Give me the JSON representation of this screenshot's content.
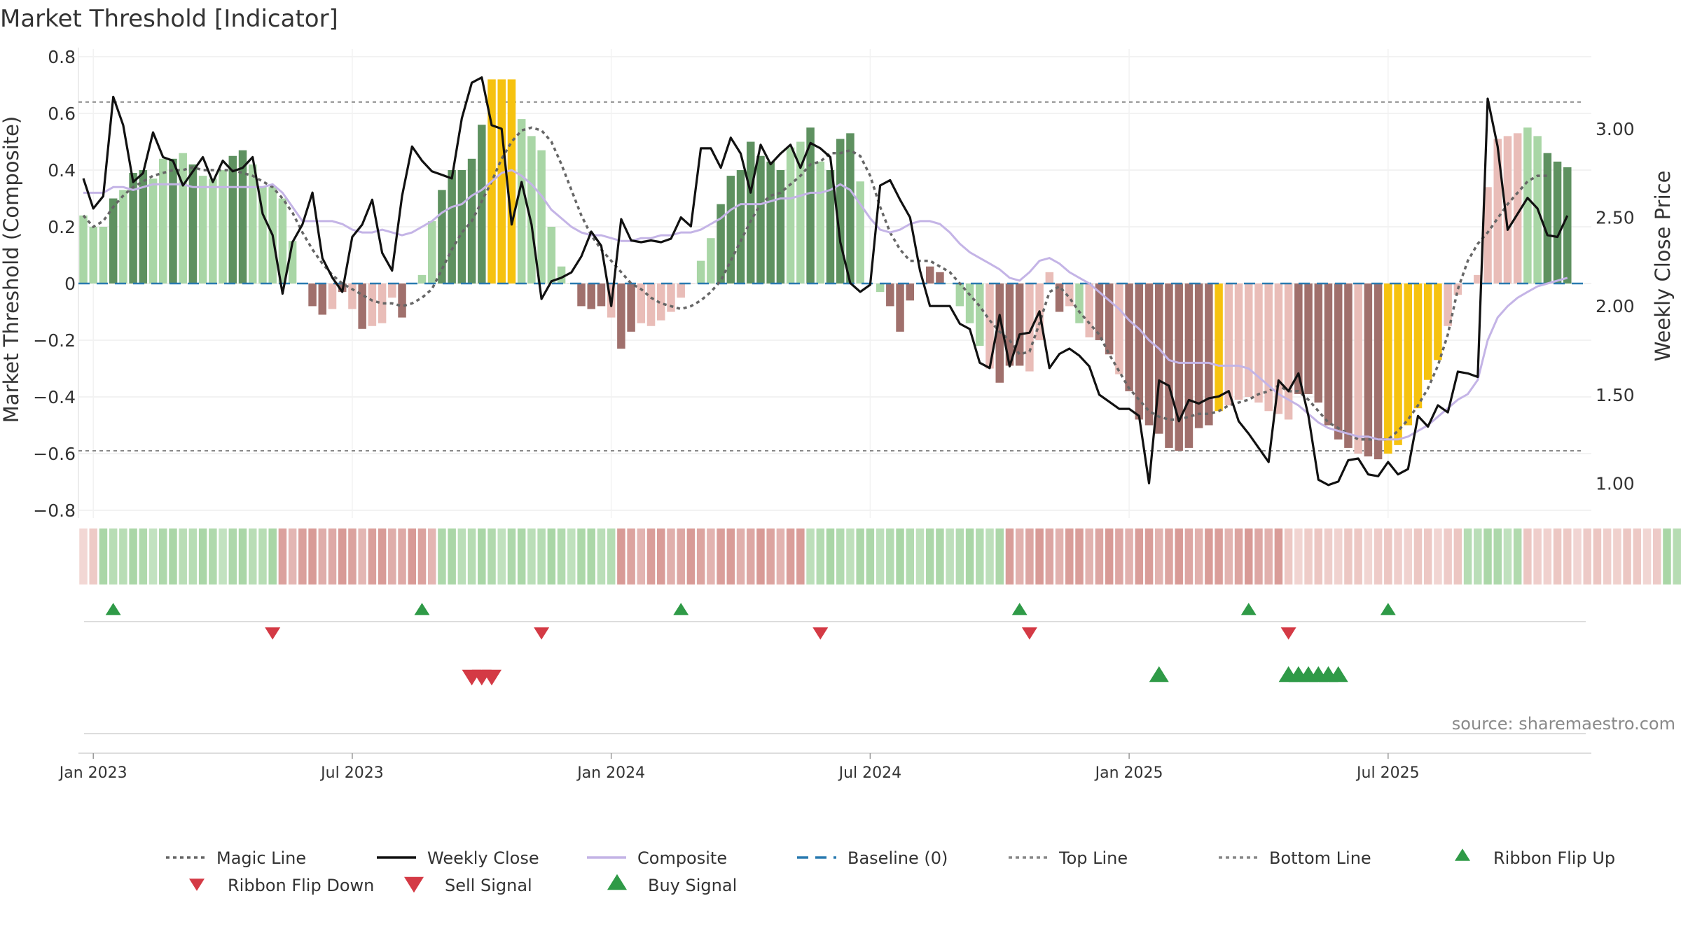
{
  "chart_data": {
    "type": "bar",
    "title": "Market Threshold [Indicator]",
    "ylabel_left": "Market Threshold (Composite)",
    "ylabel_right": "Weekly Close Price",
    "ylim_left": [
      -0.8,
      0.8
    ],
    "ylim_right": [
      0.85,
      3.4
    ],
    "left_ticks": [
      "0.8",
      "0.6",
      "0.4",
      "0.2",
      "0",
      "−0.2",
      "−0.4",
      "−0.6",
      "−0.8"
    ],
    "right_ticks": [
      "3.00",
      "2.50",
      "2.00",
      "1.50",
      "1.00"
    ],
    "x_ticks": [
      {
        "label": "Jan 2023",
        "week": 1
      },
      {
        "label": "Jul 2023",
        "week": 27
      },
      {
        "label": "Jan 2024",
        "week": 53
      },
      {
        "label": "Jul 2024",
        "week": 79
      },
      {
        "label": "Jan 2025",
        "week": 105
      },
      {
        "label": "Jul 2025",
        "week": 131
      }
    ],
    "top_line": 0.64,
    "bottom_line": -0.59,
    "baseline": 0,
    "colors": {
      "green_dark": "#5e9160",
      "green_light": "#a9d6a6",
      "red_dark": "#a0706c",
      "red_light": "#e9bdb8",
      "yellow": "#f6c20f",
      "close": "#111111",
      "composite": "#c4b4e6",
      "magic": "#666666",
      "baseline": "#2a7ab0",
      "refline": "#888888",
      "signal_green": "#2f9a47",
      "signal_red": "#d43a45"
    },
    "bars": [
      0.24,
      0.2,
      0.2,
      0.3,
      0.33,
      0.39,
      0.4,
      0.37,
      0.44,
      0.44,
      0.46,
      0.42,
      0.38,
      0.37,
      0.4,
      0.45,
      0.47,
      0.42,
      0.34,
      0.34,
      0.3,
      0.15,
      0.0,
      -0.08,
      -0.11,
      -0.09,
      -0.03,
      -0.09,
      -0.16,
      -0.15,
      -0.14,
      -0.05,
      -0.12,
      0.0,
      0.03,
      0.22,
      0.33,
      0.4,
      0.4,
      0.44,
      0.56,
      0.72,
      0.72,
      0.72,
      0.58,
      0.52,
      0.47,
      0.2,
      0.06,
      0.0,
      -0.08,
      -0.09,
      -0.08,
      -0.12,
      -0.23,
      -0.17,
      -0.14,
      -0.15,
      -0.13,
      -0.1,
      -0.05,
      0.0,
      0.08,
      0.16,
      0.28,
      0.38,
      0.4,
      0.5,
      0.45,
      0.43,
      0.4,
      0.48,
      0.5,
      0.55,
      0.43,
      0.4,
      0.51,
      0.53,
      0.36,
      0.0,
      -0.03,
      -0.08,
      -0.17,
      -0.06,
      0.0,
      0.06,
      0.04,
      0.0,
      -0.08,
      -0.14,
      -0.22,
      -0.3,
      -0.35,
      -0.29,
      -0.29,
      -0.31,
      -0.2,
      0.04,
      -0.1,
      -0.08,
      -0.14,
      -0.19,
      -0.2,
      -0.25,
      -0.32,
      -0.38,
      -0.48,
      -0.5,
      -0.53,
      -0.58,
      -0.59,
      -0.58,
      -0.51,
      -0.5,
      -0.45,
      -0.43,
      -0.41,
      -0.4,
      -0.42,
      -0.45,
      -0.46,
      -0.48,
      -0.39,
      -0.39,
      -0.42,
      -0.5,
      -0.55,
      -0.58,
      -0.6,
      -0.61,
      -0.62,
      -0.6,
      -0.57,
      -0.5,
      -0.44,
      -0.34,
      -0.27,
      -0.15,
      -0.04,
      0.0,
      0.03,
      0.34,
      0.51,
      0.52,
      0.53,
      0.55,
      0.52,
      0.46,
      0.43,
      0.41
    ],
    "bar_colors": "LLLDLDDLLDLDLLLDDLLLLLrRRrRrRrrrRRLLDDDDDYYYLLLLLLRRRrRRrrrrrrLLDDDDDDDLLDLDDDLLLRRRrRRLLLLrRRRrrrRrLrRRrRRRRRRRRRYrrrrrrrRRRRRRrRRYYYYYYrrrrrrrrLLDDDDDDLLL",
    "close": [
      2.72,
      2.55,
      2.62,
      3.18,
      3.02,
      2.7,
      2.75,
      2.98,
      2.84,
      2.82,
      2.68,
      2.76,
      2.84,
      2.7,
      2.82,
      2.76,
      2.78,
      2.84,
      2.52,
      2.4,
      2.07,
      2.36,
      2.46,
      2.64,
      2.27,
      2.16,
      2.08,
      2.39,
      2.46,
      2.6,
      2.3,
      2.2,
      2.62,
      2.9,
      2.82,
      2.76,
      2.74,
      2.72,
      3.06,
      3.26,
      3.29,
      3.02,
      3.0,
      2.46,
      2.7,
      2.46,
      2.04,
      2.14,
      2.16,
      2.19,
      2.28,
      2.42,
      2.34,
      2.0,
      2.49,
      2.37,
      2.36,
      2.37,
      2.36,
      2.38,
      2.5,
      2.45,
      2.89,
      2.89,
      2.78,
      2.95,
      2.86,
      2.64,
      2.91,
      2.8,
      2.86,
      2.91,
      2.78,
      2.92,
      2.89,
      2.84,
      2.36,
      2.13,
      2.08,
      2.12,
      2.68,
      2.71,
      2.6,
      2.5,
      2.2,
      2.0,
      2.0,
      2.0,
      1.9,
      1.87,
      1.68,
      1.65,
      1.95,
      1.66,
      1.84,
      1.85,
      1.97,
      1.65,
      1.73,
      1.76,
      1.72,
      1.66,
      1.5,
      1.46,
      1.42,
      1.42,
      1.38,
      1.0,
      1.58,
      1.55,
      1.35,
      1.47,
      1.45,
      1.48,
      1.49,
      1.52,
      1.35,
      1.28,
      1.2,
      1.12,
      1.58,
      1.52,
      1.62,
      1.38,
      1.02,
      0.99,
      1.01,
      1.13,
      1.14,
      1.05,
      1.04,
      1.12,
      1.05,
      1.08,
      1.38,
      1.32,
      1.44,
      1.4,
      1.63,
      1.62,
      1.6,
      3.17,
      2.9,
      2.43,
      2.52,
      2.61,
      2.55,
      2.4,
      2.39,
      2.51
    ],
    "composite": [
      0.32,
      0.32,
      0.32,
      0.34,
      0.34,
      0.33,
      0.34,
      0.35,
      0.35,
      0.35,
      0.35,
      0.34,
      0.34,
      0.34,
      0.34,
      0.34,
      0.34,
      0.34,
      0.34,
      0.35,
      0.32,
      0.27,
      0.22,
      0.22,
      0.22,
      0.22,
      0.21,
      0.19,
      0.18,
      0.18,
      0.19,
      0.18,
      0.17,
      0.18,
      0.2,
      0.22,
      0.25,
      0.27,
      0.28,
      0.31,
      0.33,
      0.36,
      0.39,
      0.4,
      0.38,
      0.35,
      0.31,
      0.26,
      0.23,
      0.2,
      0.18,
      0.17,
      0.17,
      0.16,
      0.15,
      0.15,
      0.16,
      0.16,
      0.17,
      0.17,
      0.18,
      0.18,
      0.19,
      0.21,
      0.23,
      0.26,
      0.28,
      0.28,
      0.28,
      0.29,
      0.3,
      0.3,
      0.31,
      0.32,
      0.32,
      0.33,
      0.35,
      0.33,
      0.28,
      0.23,
      0.19,
      0.18,
      0.19,
      0.21,
      0.22,
      0.22,
      0.21,
      0.18,
      0.14,
      0.11,
      0.09,
      0.07,
      0.05,
      0.02,
      0.01,
      0.04,
      0.08,
      0.09,
      0.07,
      0.04,
      0.02,
      0.0,
      -0.03,
      -0.06,
      -0.09,
      -0.13,
      -0.16,
      -0.2,
      -0.23,
      -0.27,
      -0.28,
      -0.28,
      -0.28,
      -0.28,
      -0.29,
      -0.29,
      -0.29,
      -0.3,
      -0.33,
      -0.36,
      -0.39,
      -0.41,
      -0.43,
      -0.46,
      -0.49,
      -0.51,
      -0.52,
      -0.53,
      -0.54,
      -0.54,
      -0.55,
      -0.55,
      -0.55,
      -0.54,
      -0.52,
      -0.5,
      -0.47,
      -0.44,
      -0.41,
      -0.39,
      -0.34,
      -0.2,
      -0.12,
      -0.08,
      -0.05,
      -0.03,
      -0.01,
      0.0,
      0.01,
      0.02
    ],
    "magic": [
      0.24,
      0.2,
      0.22,
      0.27,
      0.31,
      0.34,
      0.36,
      0.38,
      0.39,
      0.4,
      0.4,
      0.41,
      0.4,
      0.4,
      0.4,
      0.4,
      0.39,
      0.38,
      0.36,
      0.34,
      0.3,
      0.25,
      0.18,
      0.12,
      0.07,
      0.03,
      0.0,
      -0.02,
      -0.04,
      -0.06,
      -0.07,
      -0.07,
      -0.08,
      -0.07,
      -0.05,
      -0.02,
      0.05,
      0.12,
      0.18,
      0.22,
      0.29,
      0.36,
      0.44,
      0.5,
      0.54,
      0.55,
      0.54,
      0.5,
      0.42,
      0.33,
      0.24,
      0.17,
      0.12,
      0.08,
      0.04,
      0.0,
      -0.02,
      -0.05,
      -0.07,
      -0.08,
      -0.09,
      -0.08,
      -0.06,
      -0.03,
      0.01,
      0.08,
      0.15,
      0.22,
      0.28,
      0.31,
      0.32,
      0.35,
      0.38,
      0.42,
      0.43,
      0.46,
      0.46,
      0.47,
      0.45,
      0.38,
      0.27,
      0.18,
      0.12,
      0.08,
      0.08,
      0.08,
      0.06,
      0.04,
      0.0,
      -0.04,
      -0.08,
      -0.13,
      -0.17,
      -0.2,
      -0.25,
      -0.24,
      -0.14,
      -0.03,
      -0.01,
      -0.05,
      -0.1,
      -0.14,
      -0.18,
      -0.25,
      -0.31,
      -0.37,
      -0.41,
      -0.45,
      -0.47,
      -0.48,
      -0.48,
      -0.47,
      -0.46,
      -0.46,
      -0.45,
      -0.43,
      -0.42,
      -0.41,
      -0.39,
      -0.38,
      -0.36,
      -0.38,
      -0.38,
      -0.41,
      -0.45,
      -0.49,
      -0.51,
      -0.53,
      -0.55,
      -0.55,
      -0.55,
      -0.55,
      -0.52,
      -0.48,
      -0.43,
      -0.37,
      -0.29,
      -0.18,
      -0.02,
      0.08,
      0.14,
      0.18,
      0.23,
      0.28,
      0.32,
      0.36,
      0.38,
      0.38
    ],
    "ribbon_colors": "rrLLLLLLLLLLLLLLLLLLRRRRRRRRRRRRRRRRLLLLLLLLLLLLLLLLLLRRRRRRRRRRRRRRRRRRRLLLLLLLLLLLLLLLLLLLLRRRRRRRRRRRRRRRRRRRRRRRRRRRRrrrrrrrrrrrrrrrrrrLLLLLLrrrrrrrrrrrrrrLLLLLLDDDDDDDDDD",
    "ribbon_flip_up": [
      3,
      34,
      60,
      94,
      117,
      131
    ],
    "ribbon_flip_down": [
      19,
      46,
      74,
      95,
      121
    ],
    "buy_signal": [
      108,
      121,
      122,
      123,
      124,
      125,
      126
    ],
    "sell_signal": [
      39,
      40,
      41
    ],
    "legend": [
      {
        "label": "Magic Line",
        "kind": "dotted",
        "color": "#666666"
      },
      {
        "label": "Weekly Close",
        "kind": "solid",
        "color": "#111111"
      },
      {
        "label": "Composite",
        "kind": "solid",
        "color": "#c4b4e6"
      },
      {
        "label": "Baseline (0)",
        "kind": "dashed",
        "color": "#2a7ab0"
      },
      {
        "label": "Top Line",
        "kind": "dotted",
        "color": "#888888"
      },
      {
        "label": "Bottom Line",
        "kind": "dotted",
        "color": "#888888"
      },
      {
        "label": "Ribbon Flip Up",
        "kind": "tri-up-small",
        "color": "#2f9a47"
      },
      {
        "label": "Ribbon Flip Down",
        "kind": "tri-down-small",
        "color": "#d43a45"
      },
      {
        "label": "Sell Signal",
        "kind": "tri-down-big",
        "color": "#d43a45"
      },
      {
        "label": "Buy Signal",
        "kind": "tri-up-big",
        "color": "#2f9a47"
      }
    ],
    "source": "source: sharemaestro.com"
  }
}
